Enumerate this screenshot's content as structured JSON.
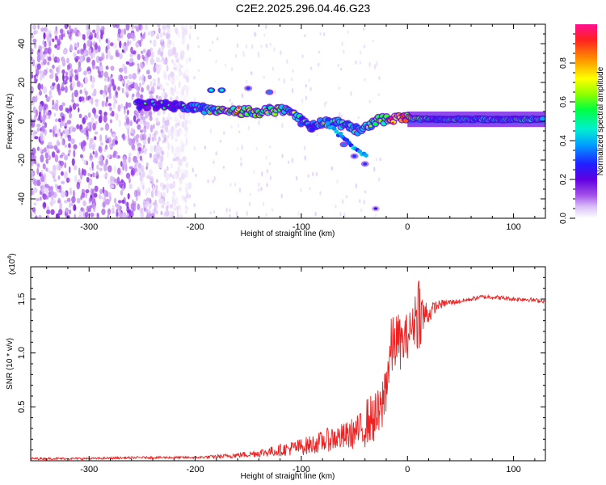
{
  "figure_title": "C2E2.2025.296.04.46.G23",
  "chart_data": [
    {
      "type": "heatmap",
      "title": "C2E2.2025.296.04.46.G23",
      "xlabel": "Height of straight line (km)",
      "ylabel": "Frequency (Hz)",
      "xlim": [
        -355,
        130
      ],
      "ylim": [
        -50,
        50
      ],
      "x_ticks": [
        -300,
        -200,
        -100,
        0,
        100
      ],
      "x_tick_labels": [
        "-300",
        "-200",
        "-100",
        "0",
        "100"
      ],
      "y_ticks": [
        -40,
        -20,
        0,
        20,
        40
      ],
      "y_tick_labels": [
        "-40",
        "-20",
        "0",
        "20",
        "40"
      ],
      "colorbar": {
        "label": "Normalized spectral amplitude",
        "range": [
          0.0,
          1.0
        ],
        "ticks": [
          0.0,
          0.2,
          0.4,
          0.6,
          0.8
        ],
        "tick_labels": [
          "0.0",
          "0.2",
          "0.4",
          "0.6",
          "0.8"
        ],
        "colors": [
          "#ffffff",
          "#d9bff7",
          "#a24fe8",
          "#6000e0",
          "#2020ff",
          "#00a0ff",
          "#00f0d0",
          "#00ff40",
          "#90ff00",
          "#ffff00",
          "#ff9000",
          "#ff2020",
          "#ff1090"
        ]
      },
      "signal_track": {
        "description": "dominant frequency ridge vs height",
        "x": [
          -250,
          -220,
          -200,
          -180,
          -160,
          -140,
          -120,
          -110,
          -100,
          -90,
          -80,
          -70,
          -60,
          -50,
          -45,
          -40,
          -35,
          -30,
          -20,
          -10,
          0,
          10,
          20,
          40,
          60,
          80,
          100,
          130
        ],
        "y": [
          9,
          8,
          7,
          6,
          5,
          5,
          6,
          4,
          0,
          -3,
          -1,
          0,
          -2,
          -4,
          -5,
          -3,
          -2,
          0,
          1,
          2,
          2,
          1,
          1,
          1,
          1,
          1,
          1,
          1
        ],
        "amplitude": [
          0.3,
          0.35,
          0.4,
          0.6,
          0.8,
          0.6,
          0.6,
          0.5,
          0.5,
          0.45,
          0.5,
          0.5,
          0.5,
          0.45,
          0.5,
          0.5,
          0.5,
          0.6,
          0.8,
          0.9,
          0.8,
          0.6,
          0.5,
          0.5,
          0.5,
          0.5,
          0.5,
          0.5
        ]
      },
      "side_track": {
        "description": "secondary features",
        "points": [
          {
            "x": -185,
            "y": 16,
            "amplitude": 0.3
          },
          {
            "x": -175,
            "y": 16,
            "amplitude": 0.3
          },
          {
            "x": -150,
            "y": 17,
            "amplitude": 0.15
          },
          {
            "x": -130,
            "y": 15,
            "amplitude": 0.2
          },
          {
            "x": -60,
            "y": -12,
            "amplitude": 0.2
          },
          {
            "x": -50,
            "y": -18,
            "amplitude": 0.15
          },
          {
            "x": -40,
            "y": -22,
            "amplitude": 0.15
          },
          {
            "x": -30,
            "y": -45,
            "amplitude": 0.1
          }
        ]
      },
      "noise_region": {
        "x_range": [
          -355,
          -205
        ],
        "y_range": [
          -50,
          50
        ]
      }
    },
    {
      "type": "line",
      "xlabel": "Height of straight line (km)",
      "ylabel": "SNR (10 * v/v)",
      "scale_label": "(x10",
      "scale_exponent": "4",
      "scale_close": ")",
      "xlim": [
        -355,
        130
      ],
      "ylim": [
        0,
        1.8
      ],
      "x_ticks": [
        -300,
        -200,
        -100,
        0,
        100
      ],
      "x_tick_labels": [
        "-300",
        "-200",
        "-100",
        "0",
        "100"
      ],
      "y_ticks": [
        0.5,
        1.0,
        1.5
      ],
      "y_tick_labels": [
        "0.5",
        "1.0",
        "1.5"
      ],
      "color": "#ee2222",
      "x": [
        -355,
        -300,
        -250,
        -200,
        -175,
        -150,
        -125,
        -100,
        -90,
        -80,
        -70,
        -60,
        -50,
        -40,
        -30,
        -25,
        -20,
        -15,
        -10,
        -5,
        0,
        5,
        10,
        15,
        20,
        25,
        30,
        40,
        50,
        60,
        70,
        80,
        90,
        100,
        110,
        120,
        130
      ],
      "values": [
        0.02,
        0.02,
        0.03,
        0.03,
        0.04,
        0.06,
        0.09,
        0.13,
        0.15,
        0.18,
        0.21,
        0.22,
        0.26,
        0.3,
        0.33,
        0.35,
        0.65,
        0.95,
        1.05,
        1.0,
        1.1,
        1.2,
        1.3,
        1.28,
        1.35,
        1.42,
        1.45,
        1.47,
        1.48,
        1.5,
        1.52,
        1.52,
        1.51,
        1.5,
        1.5,
        1.49,
        1.48
      ],
      "noise_amplitude": [
        0.01,
        0.01,
        0.01,
        0.01,
        0.02,
        0.03,
        0.05,
        0.08,
        0.09,
        0.1,
        0.12,
        0.13,
        0.15,
        0.18,
        0.2,
        0.22,
        0.25,
        0.25,
        0.22,
        0.2,
        0.18,
        0.15,
        0.35,
        0.15,
        0.1,
        0.06,
        0.04,
        0.03,
        0.02,
        0.02,
        0.02,
        0.02,
        0.02,
        0.02,
        0.02,
        0.02,
        0.02
      ]
    }
  ]
}
